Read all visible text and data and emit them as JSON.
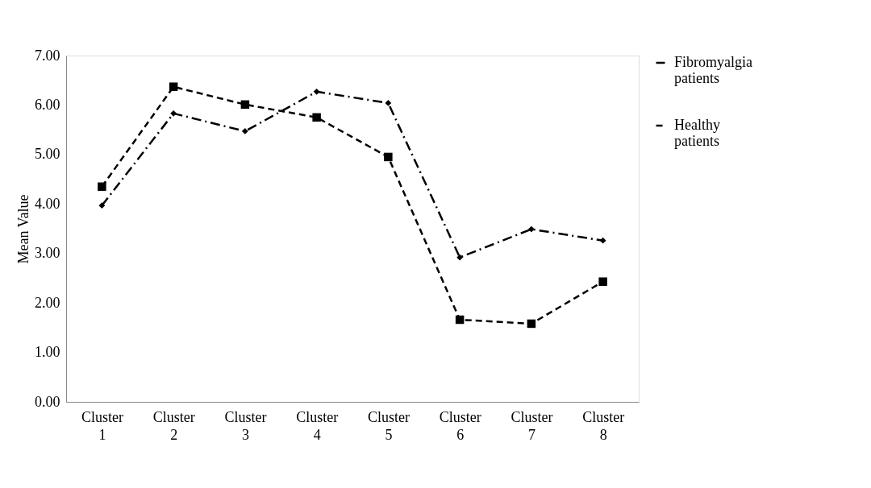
{
  "chart_data": {
    "type": "line",
    "ylabel": "Mean Value",
    "categories": [
      "Cluster 1",
      "Cluster 2",
      "Cluster 3",
      "Cluster 4",
      "Cluster 5",
      "Cluster 6",
      "Cluster 7",
      "Cluster 8"
    ],
    "ylim": [
      0,
      7
    ],
    "yticks": [
      {
        "value": 0,
        "label": "0.00"
      },
      {
        "value": 1,
        "label": "1.00"
      },
      {
        "value": 2,
        "label": "2.00"
      },
      {
        "value": 3,
        "label": "3.00"
      },
      {
        "value": 4,
        "label": "4.00"
      },
      {
        "value": 5,
        "label": "5.00"
      },
      {
        "value": 6,
        "label": "6.00"
      },
      {
        "value": 7,
        "label": "7.00"
      }
    ],
    "grid": false,
    "legend": "right",
    "series": [
      {
        "name": "Fibromyalgia patients",
        "color": "#000000",
        "marker": "diamond",
        "line_style": "dashdot",
        "values": [
          3.97,
          5.83,
          5.47,
          6.27,
          6.04,
          2.92,
          3.49,
          3.26
        ]
      },
      {
        "name": "Healthy patients",
        "color": "#000000",
        "marker": "square",
        "line_style": "dashed",
        "values": [
          4.35,
          6.37,
          6.01,
          5.75,
          4.95,
          1.66,
          1.58,
          2.43
        ]
      }
    ]
  }
}
